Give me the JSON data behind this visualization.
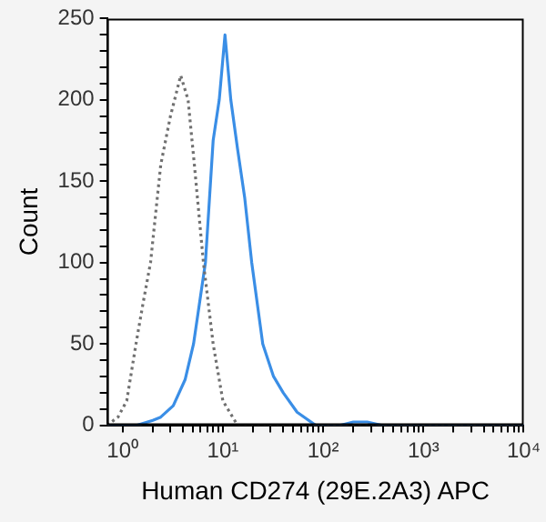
{
  "chart_data": {
    "type": "line",
    "xlabel": "Human CD274 (29E.2A3) APC",
    "ylabel": "Count",
    "log": "x",
    "marker": "none",
    "legend": false,
    "grid": false,
    "xlim": [
      0.7,
      10000
    ],
    "ylim": [
      0,
      250
    ],
    "xticks": [
      {
        "value": 1,
        "label": "10⁰"
      },
      {
        "value": 2,
        "label": null
      },
      {
        "value": 3,
        "label": null
      },
      {
        "value": 4,
        "label": null
      },
      {
        "value": 5,
        "label": null
      },
      {
        "value": 6,
        "label": null
      },
      {
        "value": 7,
        "label": null
      },
      {
        "value": 8,
        "label": null
      },
      {
        "value": 9,
        "label": null
      },
      {
        "value": 10,
        "label": "10¹"
      },
      {
        "value": 20,
        "label": null
      },
      {
        "value": 30,
        "label": null
      },
      {
        "value": 40,
        "label": null
      },
      {
        "value": 50,
        "label": null
      },
      {
        "value": 60,
        "label": null
      },
      {
        "value": 70,
        "label": null
      },
      {
        "value": 80,
        "label": null
      },
      {
        "value": 90,
        "label": null
      },
      {
        "value": 100,
        "label": "10²"
      },
      {
        "value": 200,
        "label": null
      },
      {
        "value": 300,
        "label": null
      },
      {
        "value": 400,
        "label": null
      },
      {
        "value": 500,
        "label": null
      },
      {
        "value": 600,
        "label": null
      },
      {
        "value": 700,
        "label": null
      },
      {
        "value": 800,
        "label": null
      },
      {
        "value": 900,
        "label": null
      },
      {
        "value": 1000,
        "label": "10³"
      },
      {
        "value": 2000,
        "label": null
      },
      {
        "value": 3000,
        "label": null
      },
      {
        "value": 4000,
        "label": null
      },
      {
        "value": 5000,
        "label": null
      },
      {
        "value": 6000,
        "label": null
      },
      {
        "value": 7000,
        "label": null
      },
      {
        "value": 8000,
        "label": null
      },
      {
        "value": 9000,
        "label": null
      },
      {
        "value": 10000,
        "label": "10⁴"
      }
    ],
    "yticks": [
      0,
      {
        "value": 10,
        "label": null
      },
      {
        "value": 20,
        "label": null
      },
      {
        "value": 30,
        "label": null
      },
      {
        "value": 40,
        "label": null
      },
      50,
      {
        "value": 60,
        "label": null
      },
      {
        "value": 70,
        "label": null
      },
      {
        "value": 80,
        "label": null
      },
      {
        "value": 90,
        "label": null
      },
      100,
      {
        "value": 110,
        "label": null
      },
      {
        "value": 120,
        "label": null
      },
      {
        "value": 130,
        "label": null
      },
      {
        "value": 140,
        "label": null
      },
      150,
      {
        "value": 160,
        "label": null
      },
      {
        "value": 170,
        "label": null
      },
      {
        "value": 180,
        "label": null
      },
      {
        "value": 190,
        "label": null
      },
      200,
      {
        "value": 210,
        "label": null
      },
      {
        "value": 220,
        "label": null
      },
      {
        "value": 230,
        "label": null
      },
      {
        "value": 240,
        "label": null
      },
      250
    ],
    "series": [
      {
        "color": "#707070",
        "line_style": "dotted",
        "x": [
          0.7,
          0.9,
          1.1,
          1.36,
          1.6,
          1.9,
          2.4,
          3.0,
          3.8,
          4.5,
          5.2,
          6.4,
          8,
          10,
          14,
          20,
          100,
          10000
        ],
        "values": [
          0,
          5,
          15,
          50,
          75,
          100,
          160,
          190,
          215,
          200,
          160,
          100,
          50,
          15,
          0,
          0,
          0,
          0
        ]
      },
      {
        "color": "#3a8ee6",
        "line_style": "solid",
        "x": [
          0.7,
          1.4,
          2.0,
          2.4,
          3.2,
          4.2,
          5.1,
          6.7,
          8,
          9.2,
          10.5,
          12,
          14,
          16.5,
          19.4,
          25,
          32,
          40,
          55,
          84,
          150,
          200,
          275,
          380,
          500,
          10000
        ],
        "values": [
          0,
          0,
          3,
          5,
          12,
          28,
          50,
          100,
          175,
          200,
          240,
          200,
          170,
          140,
          100,
          50,
          30,
          20,
          8,
          0,
          0,
          2,
          2,
          0,
          0,
          0
        ]
      }
    ]
  }
}
